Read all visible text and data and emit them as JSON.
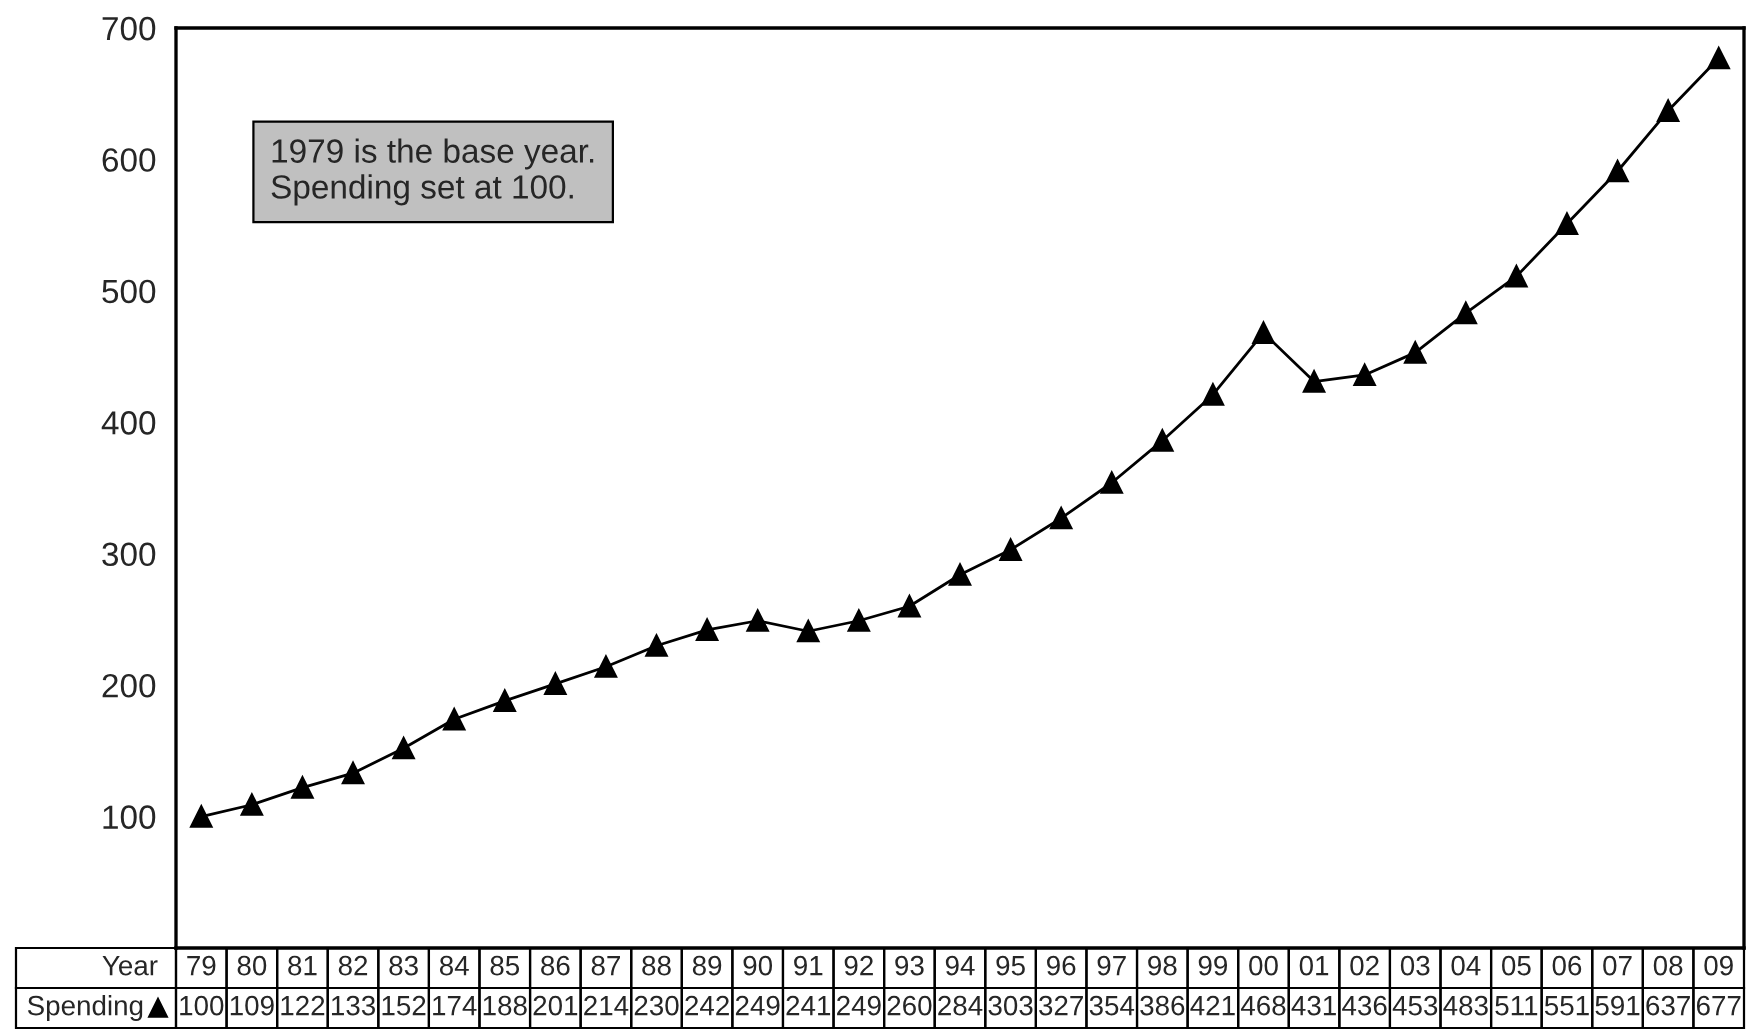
{
  "chart_data": {
    "type": "line",
    "xlabel": "Year",
    "categories": [
      "79",
      "80",
      "81",
      "82",
      "83",
      "84",
      "85",
      "86",
      "87",
      "88",
      "89",
      "90",
      "91",
      "92",
      "93",
      "94",
      "95",
      "96",
      "97",
      "98",
      "99",
      "00",
      "01",
      "02",
      "03",
      "04",
      "05",
      "06",
      "07",
      "08",
      "09"
    ],
    "series": [
      {
        "name": "Spending",
        "color": "#000000",
        "values": [
          100,
          109,
          122,
          133,
          152,
          174,
          188,
          201,
          214,
          230,
          242,
          249,
          241,
          249,
          260,
          284,
          303,
          327,
          354,
          386,
          421,
          468,
          431,
          436,
          453,
          483,
          511,
          551,
          591,
          637,
          677
        ]
      }
    ],
    "ylim": [
      0,
      700
    ],
    "yticks": [
      100,
      200,
      300,
      400,
      500,
      600,
      700
    ],
    "marker": "triangle",
    "line_style": "solid",
    "grid": false,
    "data_labels": true,
    "annotations": [
      "1979 is the base year.\nSpending set at 100."
    ]
  }
}
